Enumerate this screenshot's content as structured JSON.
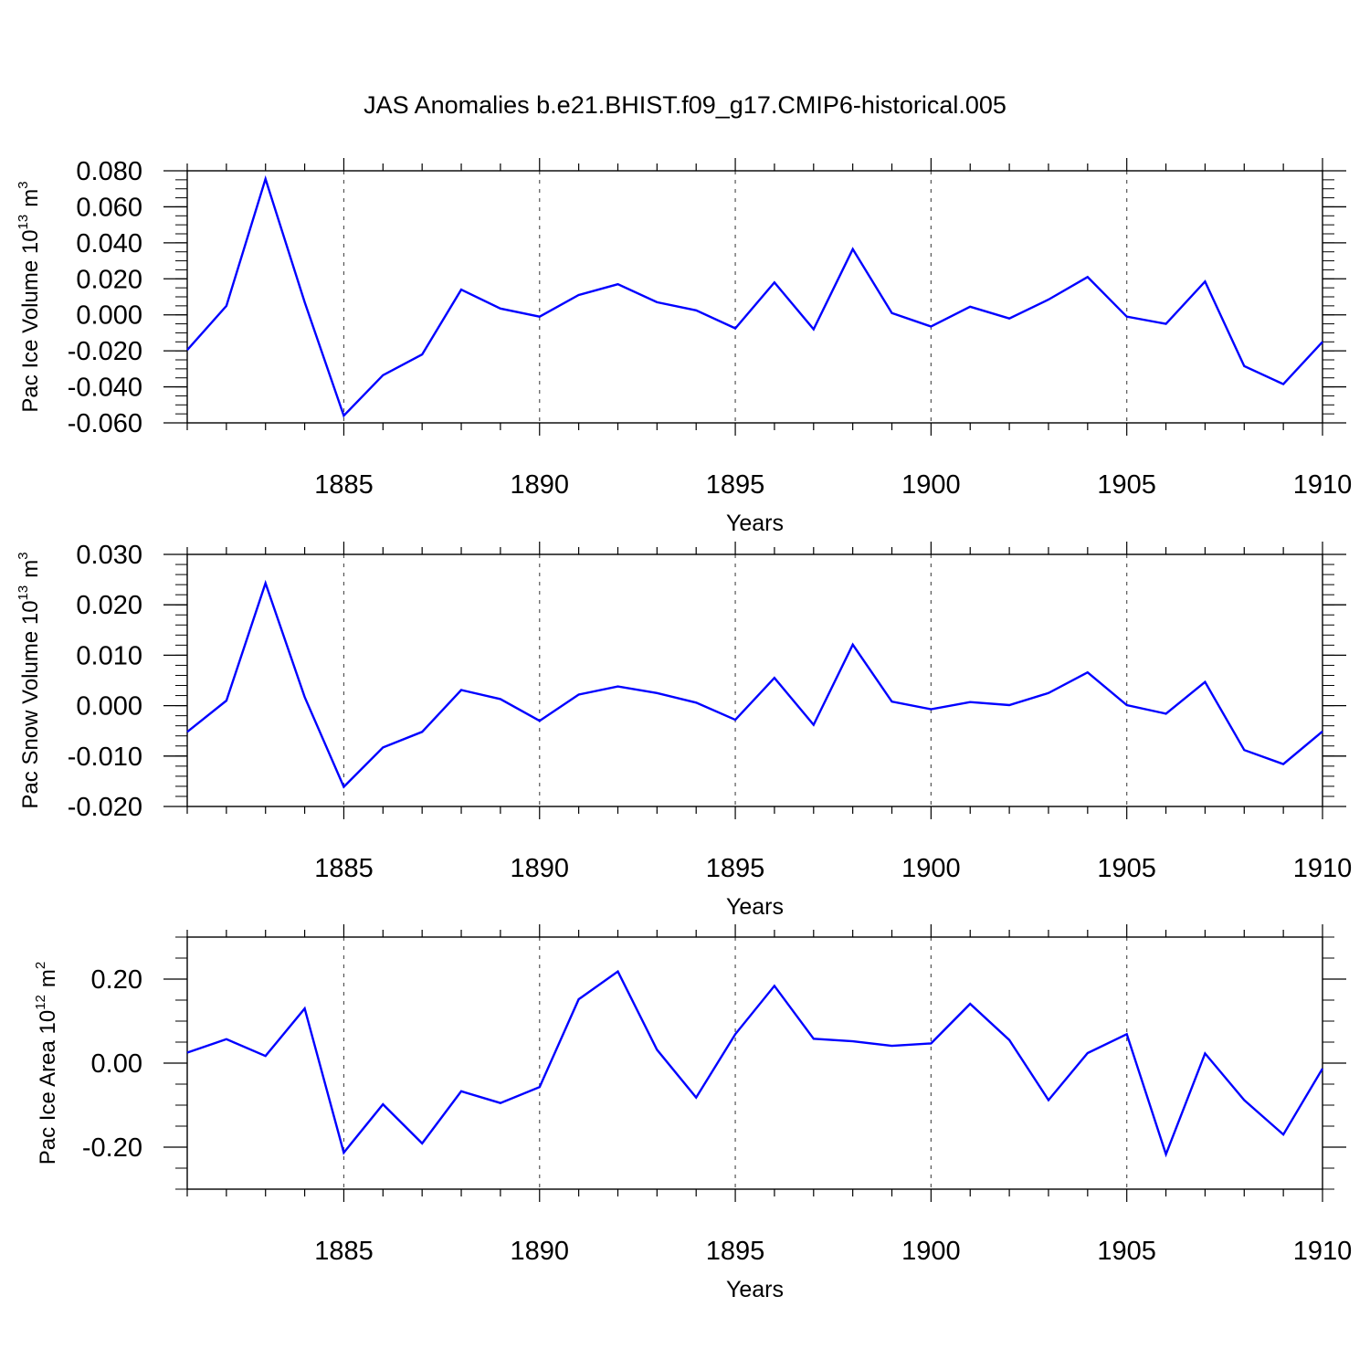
{
  "title": "JAS Anomalies b.e21.BHIST.f09_g17.CMIP6-historical.005",
  "colors": {
    "line": "#0000ff",
    "axis": "#000000",
    "grid": "#555555",
    "background": "#ffffff"
  },
  "chart_data": [
    {
      "type": "line",
      "ylabel": {
        "text": "Pac Ice Volume 10",
        "exp": "13",
        "unit": "m",
        "unit_exp": "3"
      },
      "xlabel": "Years",
      "xlim": [
        1881,
        1910
      ],
      "ylim": [
        -0.06,
        0.08
      ],
      "yticks": [
        -0.06,
        -0.04,
        -0.02,
        0.0,
        0.02,
        0.04,
        0.06,
        0.08
      ],
      "yticklabels": [
        "-0.060",
        "-0.040",
        "-0.020",
        "0.000",
        "0.020",
        "0.040",
        "0.060",
        "0.080"
      ],
      "yminor_step": 0.005,
      "xticks": [
        1885,
        1890,
        1895,
        1900,
        1905,
        1910
      ],
      "xticklabels": [
        "1885",
        "1890",
        "1895",
        "1900",
        "1905",
        "1910"
      ],
      "grid": "vertical-dashed",
      "x": [
        1881,
        1882,
        1883,
        1884,
        1885,
        1886,
        1887,
        1888,
        1889,
        1890,
        1891,
        1892,
        1893,
        1894,
        1895,
        1896,
        1897,
        1898,
        1899,
        1900,
        1901,
        1902,
        1903,
        1904,
        1905,
        1906,
        1907,
        1908,
        1909,
        1910
      ],
      "values": [
        -0.0195,
        0.005,
        0.0755,
        0.007,
        -0.056,
        -0.0335,
        -0.022,
        0.014,
        0.0035,
        -0.001,
        0.011,
        0.017,
        0.007,
        0.0025,
        -0.0075,
        0.018,
        -0.008,
        0.0365,
        0.001,
        -0.0065,
        0.0045,
        -0.002,
        0.0085,
        0.021,
        -0.001,
        -0.005,
        0.0185,
        -0.0285,
        -0.0385,
        -0.015
      ]
    },
    {
      "type": "line",
      "ylabel": {
        "text": "Pac Snow Volume 10",
        "exp": "13",
        "unit": "m",
        "unit_exp": "3"
      },
      "xlabel": "Years",
      "xlim": [
        1881,
        1910
      ],
      "ylim": [
        -0.02,
        0.03
      ],
      "yticks": [
        -0.02,
        -0.01,
        0.0,
        0.01,
        0.02,
        0.03
      ],
      "yticklabels": [
        "-0.020",
        "-0.010",
        "0.000",
        "0.010",
        "0.020",
        "0.030"
      ],
      "yminor_step": 0.002,
      "xticks": [
        1885,
        1890,
        1895,
        1900,
        1905,
        1910
      ],
      "xticklabels": [
        "1885",
        "1890",
        "1895",
        "1900",
        "1905",
        "1910"
      ],
      "grid": "vertical-dashed",
      "x": [
        1881,
        1882,
        1883,
        1884,
        1885,
        1886,
        1887,
        1888,
        1889,
        1890,
        1891,
        1892,
        1893,
        1894,
        1895,
        1896,
        1897,
        1898,
        1899,
        1900,
        1901,
        1902,
        1903,
        1904,
        1905,
        1906,
        1907,
        1908,
        1909,
        1910
      ],
      "values": [
        -0.0052,
        0.001,
        0.0243,
        0.0017,
        -0.0161,
        -0.0083,
        -0.0052,
        0.0031,
        0.0013,
        -0.003,
        0.0022,
        0.0038,
        0.0025,
        0.0006,
        -0.0028,
        0.0055,
        -0.0038,
        0.0121,
        0.0008,
        -0.0007,
        0.0007,
        0.0001,
        0.0025,
        0.0066,
        0.0001,
        -0.0016,
        0.0047,
        -0.0088,
        -0.0116,
        -0.0051
      ]
    },
    {
      "type": "line",
      "ylabel": {
        "text": "Pac Ice Area 10",
        "exp": "12",
        "unit": "m",
        "unit_exp": "2"
      },
      "xlabel": "Years",
      "xlim": [
        1881,
        1910
      ],
      "ylim": [
        -0.3,
        0.3
      ],
      "yticks": [
        -0.2,
        0.0,
        0.2
      ],
      "yticklabels": [
        "-0.20",
        "0.00",
        "0.20"
      ],
      "yminor_step": 0.05,
      "xticks": [
        1885,
        1890,
        1895,
        1900,
        1905,
        1910
      ],
      "xticklabels": [
        "1885",
        "1890",
        "1895",
        "1900",
        "1905",
        "1910"
      ],
      "grid": "vertical-dashed",
      "x": [
        1881,
        1882,
        1883,
        1884,
        1885,
        1886,
        1887,
        1888,
        1889,
        1890,
        1891,
        1892,
        1893,
        1894,
        1895,
        1896,
        1897,
        1898,
        1899,
        1900,
        1901,
        1902,
        1903,
        1904,
        1905,
        1906,
        1907,
        1908,
        1909,
        1910
      ],
      "values": [
        0.025,
        0.057,
        0.017,
        0.13,
        -0.213,
        -0.098,
        -0.191,
        -0.067,
        -0.095,
        -0.057,
        0.152,
        0.218,
        0.032,
        -0.082,
        0.069,
        0.184,
        0.058,
        0.052,
        0.041,
        0.047,
        0.141,
        0.055,
        -0.088,
        0.024,
        0.069,
        -0.217,
        0.023,
        -0.088,
        -0.17,
        -0.013
      ]
    }
  ]
}
